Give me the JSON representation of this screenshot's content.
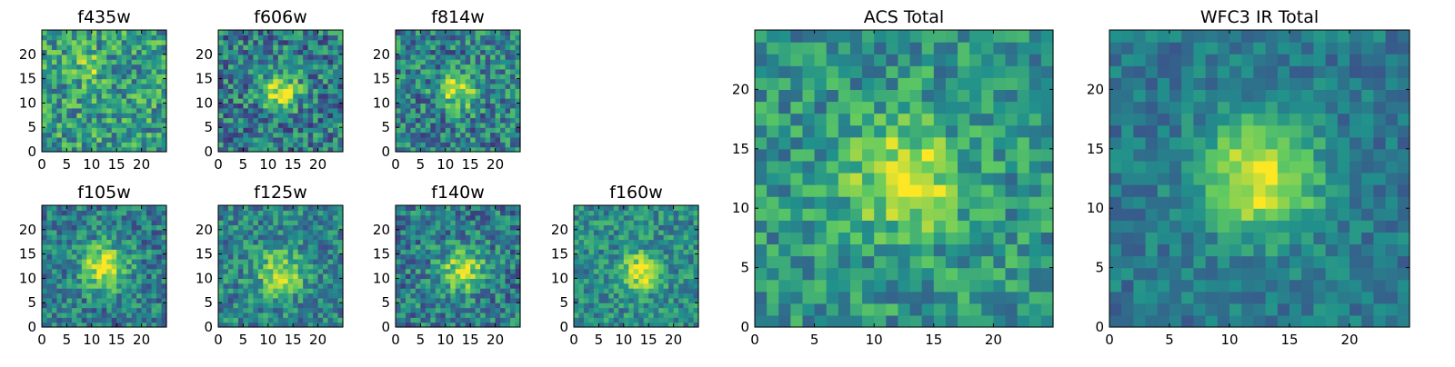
{
  "figure": {
    "background": "#ffffff"
  },
  "colormap": {
    "name": "viridis",
    "stops": [
      "#440154",
      "#3b528b",
      "#21918c",
      "#5ec962",
      "#fde725"
    ]
  },
  "chart_data": [
    {
      "type": "heatmap",
      "title": "f435w",
      "grid": false,
      "xlim": [
        0,
        25
      ],
      "ylim": [
        0,
        25
      ],
      "xticks": [
        0,
        5,
        10,
        15,
        20
      ],
      "yticks": [
        0,
        5,
        10,
        15,
        20
      ],
      "image": {
        "size": [
          25,
          25
        ],
        "peak_center": [
          9,
          17
        ],
        "peak_width": 2.0,
        "peak_level": 0.8,
        "background_level": 0.55,
        "noise_level": 0.34,
        "seed": 11
      }
    },
    {
      "type": "heatmap",
      "title": "f606w",
      "grid": false,
      "xlim": [
        0,
        25
      ],
      "ylim": [
        0,
        25
      ],
      "xticks": [
        0,
        5,
        10,
        15,
        20
      ],
      "yticks": [
        0,
        5,
        10,
        15,
        20
      ],
      "image": {
        "size": [
          25,
          25
        ],
        "peak_center": [
          12,
          12
        ],
        "peak_width": 2.6,
        "peak_level": 0.95,
        "background_level": 0.42,
        "noise_level": 0.34,
        "seed": 22
      }
    },
    {
      "type": "heatmap",
      "title": "f814w",
      "grid": false,
      "xlim": [
        0,
        25
      ],
      "ylim": [
        0,
        25
      ],
      "xticks": [
        0,
        5,
        10,
        15,
        20
      ],
      "yticks": [
        0,
        5,
        10,
        15,
        20
      ],
      "image": {
        "size": [
          25,
          25
        ],
        "peak_center": [
          12,
          12
        ],
        "peak_width": 2.6,
        "peak_level": 0.9,
        "background_level": 0.44,
        "noise_level": 0.34,
        "seed": 33
      }
    },
    {
      "type": "heatmap",
      "title": "f105w",
      "grid": false,
      "xlim": [
        0,
        25
      ],
      "ylim": [
        0,
        25
      ],
      "xticks": [
        0,
        5,
        10,
        15,
        20
      ],
      "yticks": [
        0,
        5,
        10,
        15,
        20
      ],
      "image": {
        "size": [
          25,
          25
        ],
        "peak_center": [
          12,
          12
        ],
        "peak_width": 3.2,
        "peak_level": 0.97,
        "background_level": 0.42,
        "noise_level": 0.28,
        "seed": 44
      }
    },
    {
      "type": "heatmap",
      "title": "f125w",
      "grid": false,
      "xlim": [
        0,
        25
      ],
      "ylim": [
        0,
        25
      ],
      "xticks": [
        0,
        5,
        10,
        15,
        20
      ],
      "yticks": [
        0,
        5,
        10,
        15,
        20
      ],
      "image": {
        "size": [
          25,
          25
        ],
        "peak_center": [
          12,
          11
        ],
        "peak_width": 3.4,
        "peak_level": 0.85,
        "background_level": 0.45,
        "noise_level": 0.28,
        "seed": 55
      }
    },
    {
      "type": "heatmap",
      "title": "f140w",
      "grid": false,
      "xlim": [
        0,
        25
      ],
      "ylim": [
        0,
        25
      ],
      "xticks": [
        0,
        5,
        10,
        15,
        20
      ],
      "yticks": [
        0,
        5,
        10,
        15,
        20
      ],
      "image": {
        "size": [
          25,
          25
        ],
        "peak_center": [
          13,
          11
        ],
        "peak_width": 3.0,
        "peak_level": 0.9,
        "background_level": 0.42,
        "noise_level": 0.3,
        "seed": 66
      }
    },
    {
      "type": "heatmap",
      "title": "f160w",
      "grid": false,
      "xlim": [
        0,
        25
      ],
      "ylim": [
        0,
        25
      ],
      "xticks": [
        0,
        5,
        10,
        15,
        20
      ],
      "yticks": [
        0,
        5,
        10,
        15,
        20
      ],
      "image": {
        "size": [
          25,
          25
        ],
        "peak_center": [
          13,
          11
        ],
        "peak_width": 2.6,
        "peak_level": 0.98,
        "background_level": 0.48,
        "noise_level": 0.25,
        "seed": 77
      }
    },
    {
      "type": "heatmap",
      "title": "ACS Total",
      "grid": false,
      "xlim": [
        0,
        25
      ],
      "ylim": [
        0,
        25
      ],
      "xticks": [
        0,
        5,
        10,
        15,
        20
      ],
      "yticks": [
        0,
        5,
        10,
        15,
        20
      ],
      "image": {
        "size": [
          25,
          25
        ],
        "peak_center": [
          12,
          12
        ],
        "peak_width": 3.0,
        "peak_level": 0.98,
        "background_level": 0.52,
        "noise_level": 0.26,
        "seed": 88
      }
    },
    {
      "type": "heatmap",
      "title": "WFC3 IR Total",
      "grid": false,
      "xlim": [
        0,
        25
      ],
      "ylim": [
        0,
        25
      ],
      "xticks": [
        0,
        5,
        10,
        15,
        20
      ],
      "yticks": [
        0,
        5,
        10,
        15,
        20
      ],
      "image": {
        "size": [
          25,
          25
        ],
        "peak_center": [
          12,
          12
        ],
        "peak_width": 3.4,
        "peak_level": 0.98,
        "background_level": 0.4,
        "noise_level": 0.17,
        "seed": 99
      }
    }
  ]
}
